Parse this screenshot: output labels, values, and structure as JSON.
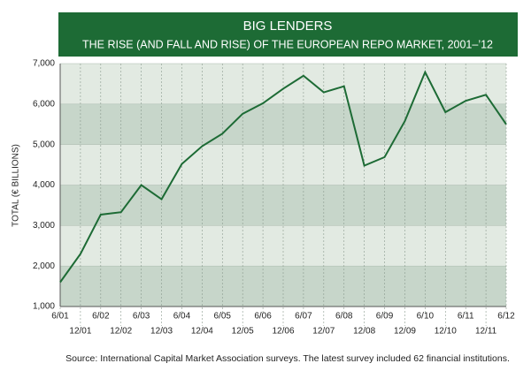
{
  "chart_data": {
    "type": "line",
    "title": "BIG LENDERS",
    "subtitle": "THE RISE (AND FALL AND RISE) OF THE EUROPEAN REPO MARKET, 2001–’12",
    "y_label": "TOTAL (€ BILLIONS)",
    "source": "Source: International Capital Market Association surveys. The latest survey included 62 financial institutions.",
    "categories": [
      "6/01",
      "12/01",
      "6/02",
      "12/02",
      "6/03",
      "12/03",
      "6/04",
      "12/04",
      "6/05",
      "12/05",
      "6/06",
      "12/06",
      "6/07",
      "12/07",
      "6/08",
      "12/08",
      "6/09",
      "12/09",
      "6/10",
      "12/10",
      "6/11",
      "12/11",
      "6/12"
    ],
    "series": [
      {
        "name": "Total",
        "color": "#1d6b35",
        "values": [
          1600,
          2300,
          3270,
          3330,
          4000,
          3650,
          4520,
          4960,
          5270,
          5760,
          6020,
          6380,
          6700,
          6290,
          6440,
          4480,
          4690,
          5580,
          6790,
          5800,
          6080,
          6230,
          5500
        ]
      }
    ],
    "ylim": [
      1000,
      7000
    ],
    "yticks": [
      {
        "value": 1000,
        "label": "1,000"
      },
      {
        "value": 2000,
        "label": "2,000"
      },
      {
        "value": 3000,
        "label": "3,000"
      },
      {
        "value": 4000,
        "label": "4,000"
      },
      {
        "value": 5000,
        "label": "5,000"
      },
      {
        "value": 6000,
        "label": "6,000"
      },
      {
        "value": 7000,
        "label": "7,000"
      }
    ],
    "grid": true
  }
}
